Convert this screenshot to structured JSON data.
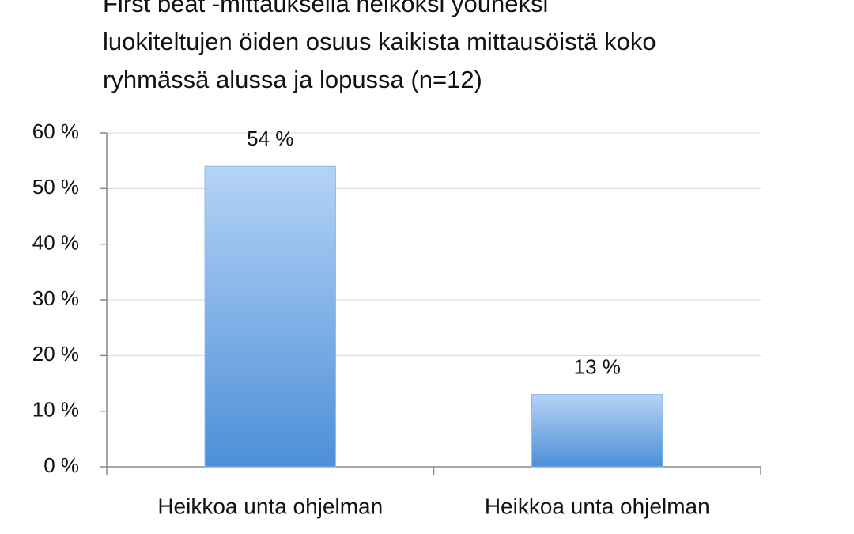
{
  "chart_data": {
    "type": "bar",
    "title": [
      "First beat -mittauksella heikoksi yöuneksi",
      "luokiteltujen öiden osuus kaikista mittausöistä koko",
      "ryhmässä alussa ja lopussa (n=12)"
    ],
    "categories": [
      "Heikkoa unta ohjelman",
      "Heikkoa unta ohjelman"
    ],
    "values": [
      54,
      13
    ],
    "value_labels": [
      "54 %",
      "13 %"
    ],
    "color": "#6fa6e6",
    "ylim": [
      0,
      60
    ],
    "yticks": [
      {
        "value": 0,
        "label": "0 %"
      },
      {
        "value": 10,
        "label": "10 %"
      },
      {
        "value": 20,
        "label": "20 %"
      },
      {
        "value": 30,
        "label": "30 %"
      },
      {
        "value": 40,
        "label": "40 %"
      },
      {
        "value": 50,
        "label": "50 %"
      },
      {
        "value": 60,
        "label": "60 %"
      }
    ],
    "grid": true
  }
}
